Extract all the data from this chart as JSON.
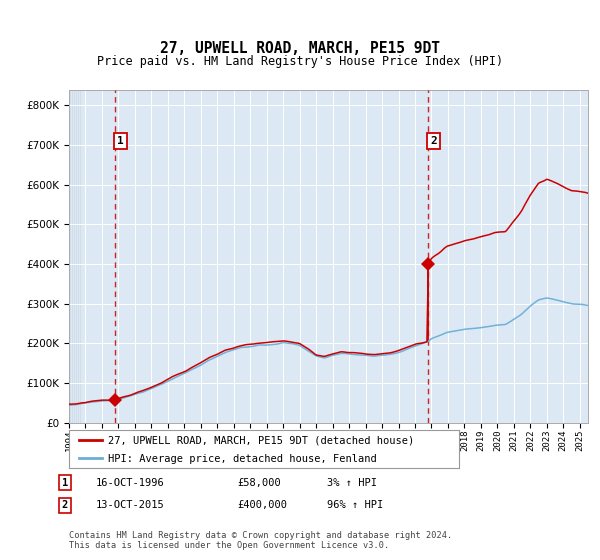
{
  "title": "27, UPWELL ROAD, MARCH, PE15 9DT",
  "subtitle": "Price paid vs. HM Land Registry's House Price Index (HPI)",
  "legend_line1": "27, UPWELL ROAD, MARCH, PE15 9DT (detached house)",
  "legend_line2": "HPI: Average price, detached house, Fenland",
  "annotation1_label": "1",
  "annotation1_date": "16-OCT-1996",
  "annotation1_price": "£58,000",
  "annotation1_hpi": "3% ↑ HPI",
  "annotation2_label": "2",
  "annotation2_date": "13-OCT-2015",
  "annotation2_price": "£400,000",
  "annotation2_hpi": "96% ↑ HPI",
  "footnote": "Contains HM Land Registry data © Crown copyright and database right 2024.\nThis data is licensed under the Open Government Licence v3.0.",
  "hpi_color": "#6baed6",
  "price_color": "#cc0000",
  "vline_color": "#cc0000",
  "point1_x": 1996.79,
  "point1_y": 58000,
  "point2_x": 2015.78,
  "point2_y": 400000,
  "ylim": [
    0,
    840000
  ],
  "xlim_start": 1994.0,
  "xlim_end": 2025.5,
  "background_color": "#dce9f5",
  "outer_bg_color": "#ffffff"
}
